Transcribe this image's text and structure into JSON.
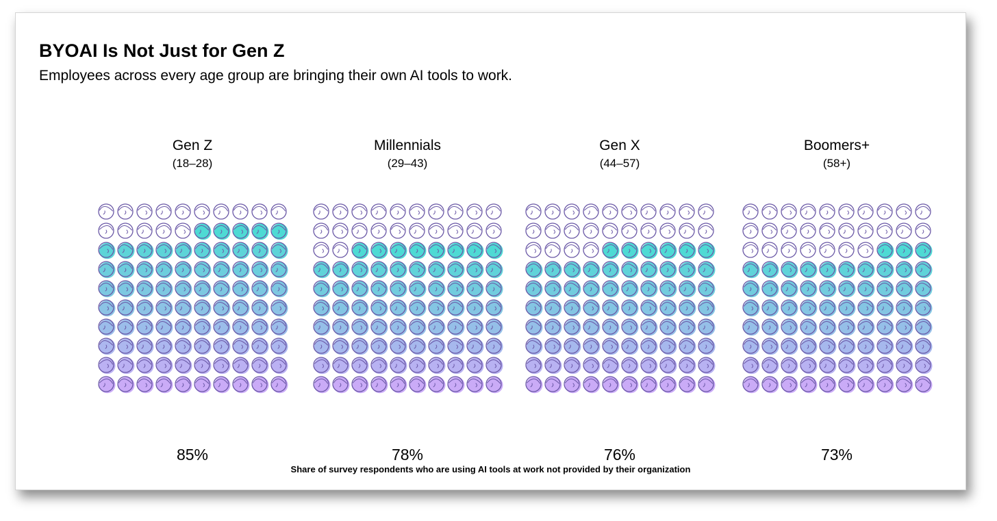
{
  "title": "BYOAI Is Not Just for Gen Z",
  "subtitle": "Employees across every age group are bringing their own AI tools to work.",
  "footnote": "Share of survey respondents who are using AI tools at work not provided by their organization",
  "colors": {
    "outline": "#6a58a6",
    "fill_top": "#2fd3cc",
    "fill_bottom": "#c19cf6"
  },
  "icon": "person-face-icon",
  "chart_data": {
    "type": "waffle",
    "units_per_chart": 100,
    "grid": [
      10,
      10
    ],
    "fill_order": "bottom-up",
    "categories": [
      "Gen Z",
      "Millennials",
      "Gen X",
      "Boomers+"
    ],
    "series": [
      {
        "values": [
          85,
          78,
          76,
          73
        ]
      }
    ],
    "groups": [
      {
        "name": "Gen Z",
        "range": "(18–28)",
        "value": 85,
        "label": "85%"
      },
      {
        "name": "Millennials",
        "range": "(29–43)",
        "value": 78,
        "label": "78%"
      },
      {
        "name": "Gen X",
        "range": "(44–57)",
        "value": 76,
        "label": "76%"
      },
      {
        "name": "Boomers+",
        "range": "(58+)",
        "value": 73,
        "label": "73%"
      }
    ]
  }
}
